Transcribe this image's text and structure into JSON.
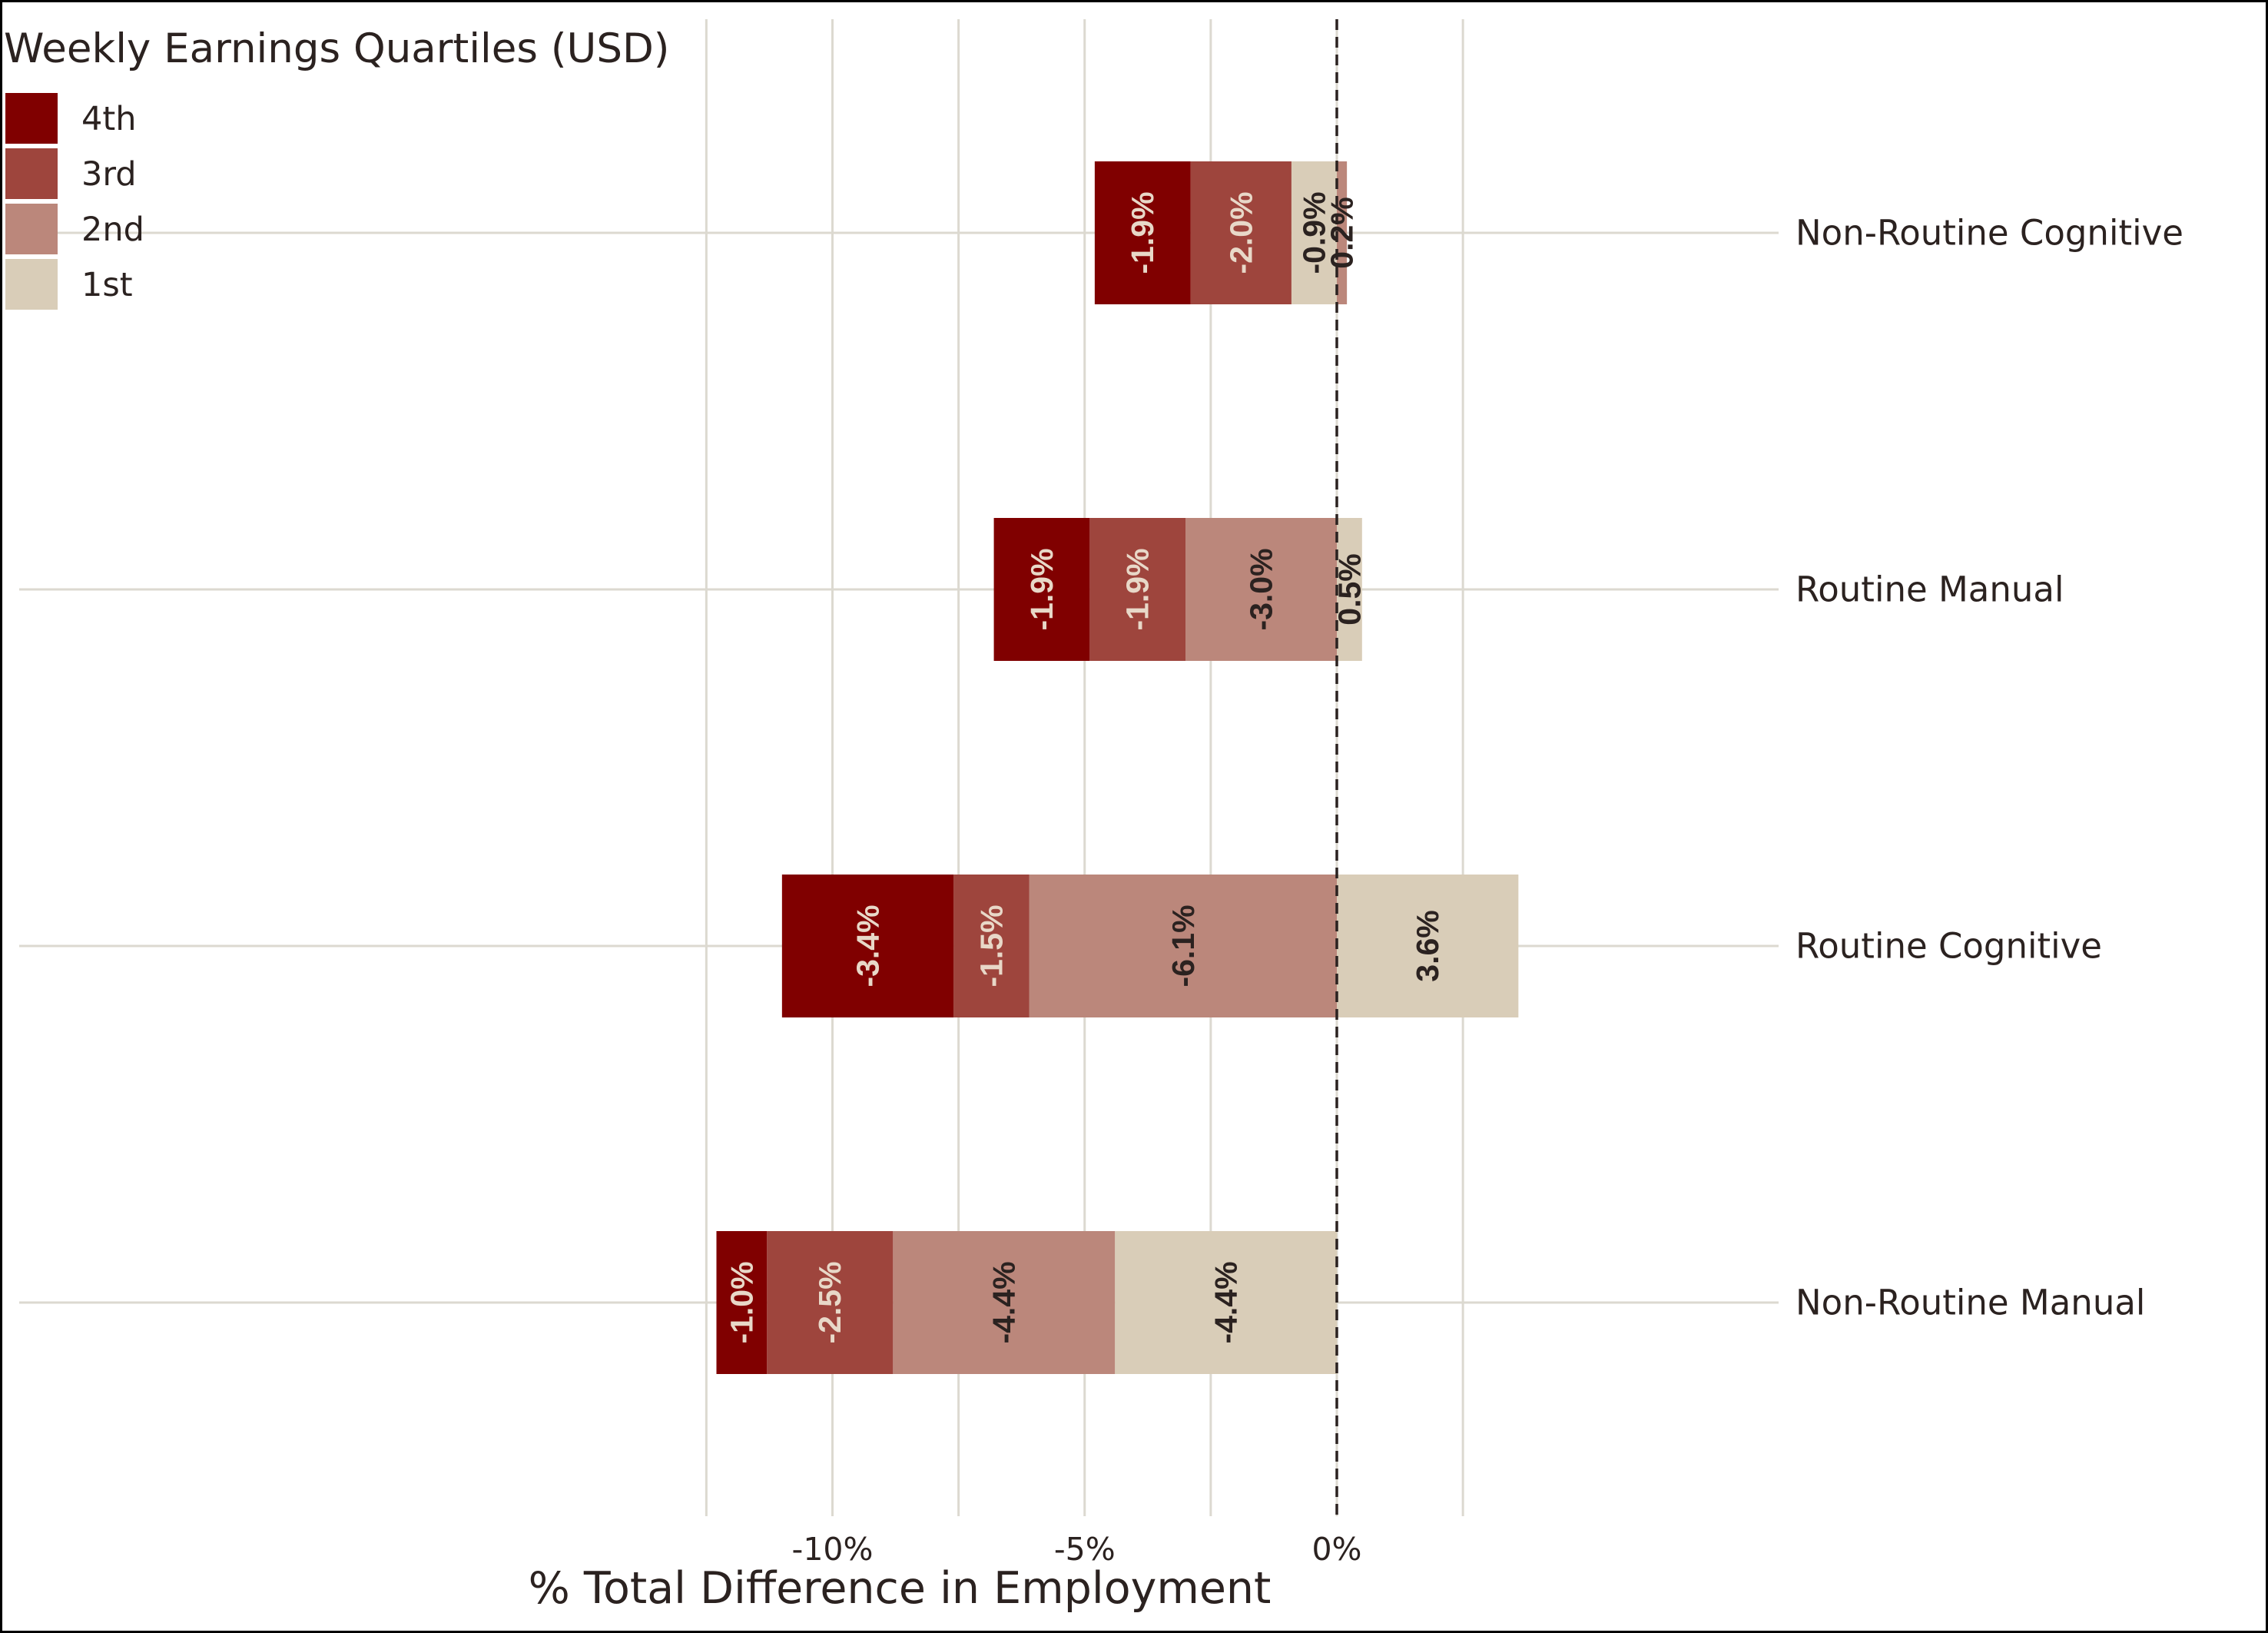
{
  "chart_data": {
    "type": "bar",
    "orientation": "horizontal",
    "stacked": true,
    "legend_title": "Weekly Earnings Quartiles (USD)",
    "legend_position": "top-left",
    "legend": [
      {
        "label": "4th",
        "color": "#800000"
      },
      {
        "label": "3rd",
        "color": "#9e453d"
      },
      {
        "label": "2nd",
        "color": "#bb877b"
      },
      {
        "label": "1st",
        "color": "#d9cdb8"
      }
    ],
    "categories": [
      "Non-Routine Cognitive",
      "Routine Manual",
      "Routine Cognitive",
      "Non-Routine Manual"
    ],
    "series": [
      {
        "name": "1st",
        "color": "#d9cdb8",
        "label_color": "#2b2220",
        "values": [
          -0.9,
          0.5,
          3.6,
          -4.4
        ],
        "labels": [
          "-0.9%",
          "0.5%",
          "3.6%",
          "-4.4%"
        ]
      },
      {
        "name": "2nd",
        "color": "#bb877b",
        "label_color": "#2b2220",
        "values": [
          0.2,
          -3.0,
          -6.1,
          -4.4
        ],
        "labels": [
          "0.2%",
          "-3.0%",
          "-6.1%",
          "-4.4%"
        ]
      },
      {
        "name": "3rd",
        "color": "#9e453d",
        "label_color": "#e8d8c8",
        "values": [
          -2.0,
          -1.9,
          -1.5,
          -2.5
        ],
        "labels": [
          "-2.0%",
          "-1.9%",
          "-1.5%",
          "-2.5%"
        ]
      },
      {
        "name": "4th",
        "color": "#800000",
        "label_color": "#e8d8c8",
        "values": [
          -1.9,
          -1.9,
          -3.4,
          -1.0
        ],
        "labels": [
          "-1.9%",
          "-1.9%",
          "-3.4%",
          "-1.0%"
        ]
      }
    ],
    "xlabel": "% Total Difference in Employment",
    "ylabel": "",
    "xlim": [
      -12.5,
      4.4
    ],
    "xticks": [
      -10,
      -5,
      0
    ],
    "xtick_labels": [
      "-10%",
      "-5%",
      "0%"
    ],
    "minor_gridlines": [
      -12.5,
      -7.5,
      -2.5,
      2.5
    ],
    "reference_line": {
      "x": 0,
      "style": "dashed"
    },
    "grid": true,
    "grid_color": "#dcd9d0",
    "category_label_side": "right"
  }
}
